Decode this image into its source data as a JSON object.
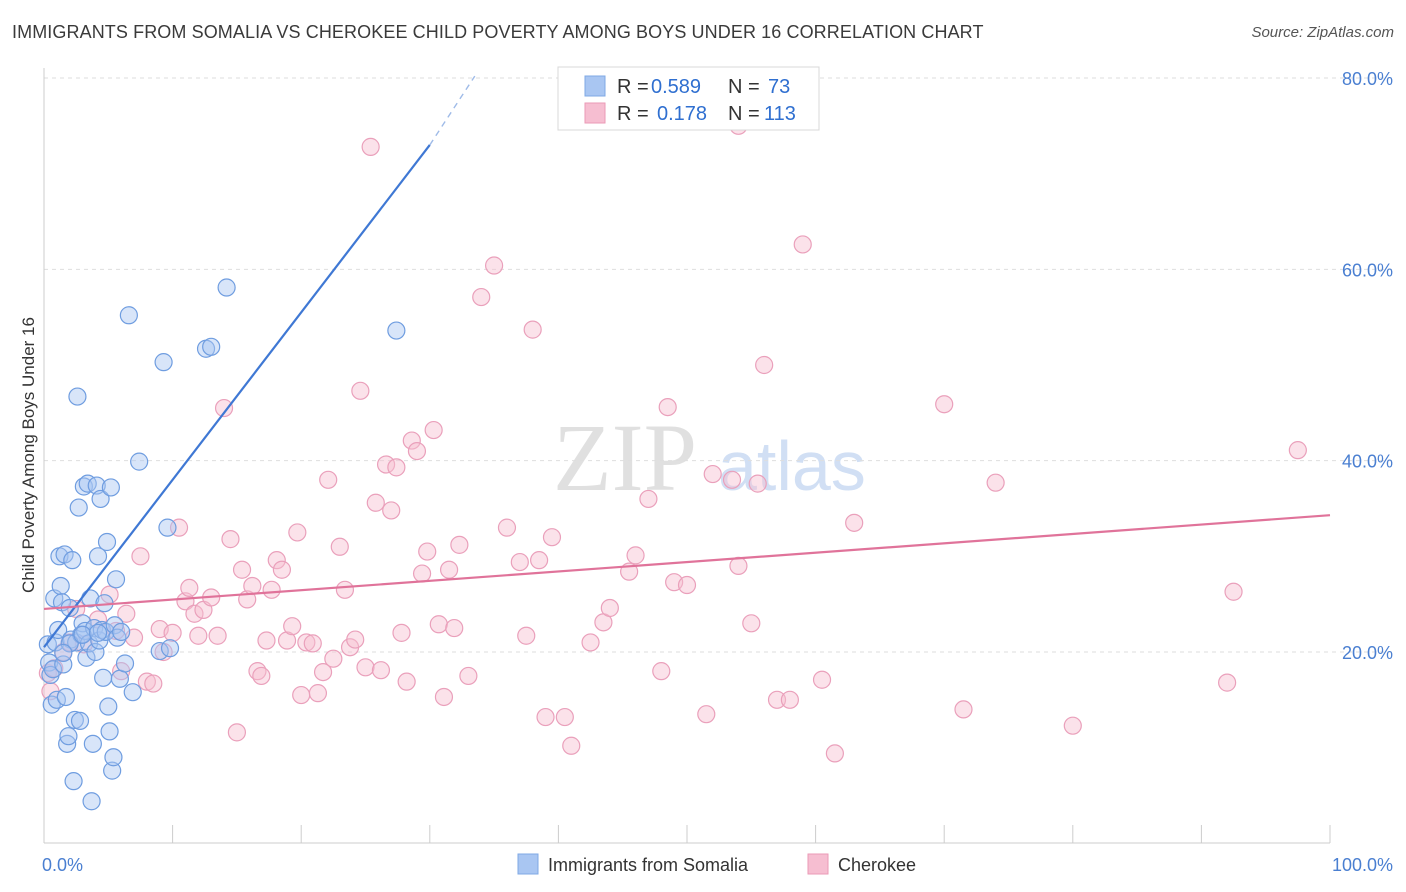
{
  "title": "IMMIGRANTS FROM SOMALIA VS CHEROKEE CHILD POVERTY AMONG BOYS UNDER 16 CORRELATION CHART",
  "source": "Source: ZipAtlas.com",
  "watermark": {
    "zip": "ZIP",
    "atlas": "atlas"
  },
  "colors": {
    "blue": "#4f86d9",
    "blue_fill": "#a9c6f2",
    "pink": "#e0739a",
    "pink_fill": "#f6bed1",
    "grid": "#dcdcdc",
    "axis_label": "#4a7fd1"
  },
  "legend": {
    "r_label": "R =",
    "n_label": "N =",
    "series": [
      {
        "name": "Immigrants from Somalia",
        "r": "0.589",
        "n": "73"
      },
      {
        "name": "Cherokee",
        "r": "0.178",
        "n": "113"
      }
    ]
  },
  "chart_data": {
    "type": "scatter",
    "title": "IMMIGRANTS FROM SOMALIA VS CHEROKEE CHILD POVERTY AMONG BOYS UNDER 16 CORRELATION CHART",
    "xlabel": "",
    "ylabel": "Child Poverty Among Boys Under 16",
    "xlim": [
      0,
      100
    ],
    "ylim": [
      0,
      84
    ],
    "x_tick_labels": [
      "0.0%",
      "100.0%"
    ],
    "y_ticks": [
      20,
      40,
      60,
      80
    ],
    "y_tick_labels": [
      "20.0%",
      "40.0%",
      "60.0%",
      "80.0%"
    ],
    "grid": true,
    "legend_position": "top-center",
    "series": [
      {
        "name": "Immigrants from Somalia",
        "color": "#4f86d9",
        "trend": {
          "x": [
            0,
            30
          ],
          "y": [
            20.5,
            73.0
          ],
          "dashed_extension_x": [
            30,
            33.5
          ],
          "dashed_extension_y": [
            73.0,
            80.2
          ]
        },
        "points": [
          [
            0.3,
            20.8
          ],
          [
            0.4,
            18.9
          ],
          [
            0.5,
            17.6
          ],
          [
            0.6,
            14.5
          ],
          [
            0.7,
            18.2
          ],
          [
            0.8,
            25.6
          ],
          [
            0.9,
            21.0
          ],
          [
            1.0,
            15.0
          ],
          [
            1.1,
            22.3
          ],
          [
            1.2,
            30.0
          ],
          [
            1.3,
            26.9
          ],
          [
            1.4,
            25.2
          ],
          [
            1.5,
            18.7
          ],
          [
            1.6,
            30.2
          ],
          [
            1.7,
            15.3
          ],
          [
            1.8,
            10.4
          ],
          [
            1.9,
            11.2
          ],
          [
            2.0,
            24.6
          ],
          [
            2.1,
            21.3
          ],
          [
            2.2,
            29.6
          ],
          [
            2.3,
            6.5
          ],
          [
            2.4,
            12.9
          ],
          [
            2.5,
            21.0
          ],
          [
            2.6,
            46.7
          ],
          [
            2.7,
            35.1
          ],
          [
            2.8,
            12.8
          ],
          [
            2.9,
            21.8
          ],
          [
            3.0,
            23.0
          ],
          [
            3.1,
            37.3
          ],
          [
            3.2,
            22.2
          ],
          [
            3.3,
            19.4
          ],
          [
            3.4,
            37.6
          ],
          [
            3.5,
            20.9
          ],
          [
            3.6,
            25.6
          ],
          [
            3.7,
            4.4
          ],
          [
            3.8,
            10.4
          ],
          [
            3.9,
            22.5
          ],
          [
            4.0,
            20.0
          ],
          [
            4.1,
            37.4
          ],
          [
            4.2,
            30.0
          ],
          [
            4.3,
            21.2
          ],
          [
            4.4,
            36.0
          ],
          [
            4.5,
            22.3
          ],
          [
            4.6,
            17.3
          ],
          [
            4.7,
            25.1
          ],
          [
            4.8,
            22.1
          ],
          [
            4.9,
            31.5
          ],
          [
            5.0,
            14.3
          ],
          [
            5.1,
            11.7
          ],
          [
            5.2,
            37.2
          ],
          [
            5.3,
            7.6
          ],
          [
            5.4,
            9.0
          ],
          [
            5.5,
            22.8
          ],
          [
            5.6,
            27.6
          ],
          [
            5.7,
            21.5
          ],
          [
            5.9,
            17.2
          ],
          [
            6.0,
            22.1
          ],
          [
            6.3,
            18.8
          ],
          [
            6.6,
            55.2
          ],
          [
            6.9,
            15.8
          ],
          [
            7.4,
            39.9
          ],
          [
            9.0,
            20.1
          ],
          [
            9.3,
            50.3
          ],
          [
            9.6,
            33.0
          ],
          [
            9.8,
            20.4
          ],
          [
            12.6,
            51.7
          ],
          [
            13.0,
            51.9
          ],
          [
            14.2,
            58.1
          ],
          [
            27.4,
            53.6
          ],
          [
            2.0,
            20.9
          ],
          [
            1.5,
            19.9
          ],
          [
            3.0,
            21.8
          ],
          [
            4.2,
            22.0
          ]
        ]
      },
      {
        "name": "Cherokee",
        "color": "#e0739a",
        "trend": {
          "x": [
            0,
            100
          ],
          "y": [
            24.5,
            34.3
          ]
        },
        "points": [
          [
            0.3,
            17.8
          ],
          [
            0.5,
            15.9
          ],
          [
            0.8,
            18.3
          ],
          [
            1.5,
            20.0
          ],
          [
            2.0,
            21.0
          ],
          [
            2.5,
            24.5
          ],
          [
            3.1,
            20.8
          ],
          [
            4.2,
            23.4
          ],
          [
            5.1,
            26.0
          ],
          [
            5.6,
            22.2
          ],
          [
            6.0,
            18.0
          ],
          [
            6.4,
            24.0
          ],
          [
            7.0,
            21.5
          ],
          [
            7.5,
            30.0
          ],
          [
            8.0,
            16.9
          ],
          [
            8.5,
            16.7
          ],
          [
            9.0,
            22.4
          ],
          [
            9.3,
            20.0
          ],
          [
            10.0,
            22.0
          ],
          [
            10.5,
            33.0
          ],
          [
            11.0,
            25.3
          ],
          [
            11.3,
            26.7
          ],
          [
            11.7,
            24.0
          ],
          [
            12.0,
            21.7
          ],
          [
            12.4,
            24.4
          ],
          [
            13.0,
            25.7
          ],
          [
            13.5,
            21.7
          ],
          [
            14.0,
            45.5
          ],
          [
            14.5,
            31.8
          ],
          [
            15.0,
            11.6
          ],
          [
            15.4,
            28.6
          ],
          [
            15.8,
            25.5
          ],
          [
            16.2,
            26.9
          ],
          [
            16.6,
            18.0
          ],
          [
            16.9,
            17.5
          ],
          [
            17.3,
            21.2
          ],
          [
            17.7,
            26.5
          ],
          [
            18.1,
            29.6
          ],
          [
            18.5,
            28.6
          ],
          [
            18.9,
            21.2
          ],
          [
            19.3,
            22.7
          ],
          [
            19.7,
            32.5
          ],
          [
            20.0,
            15.5
          ],
          [
            20.4,
            21.0
          ],
          [
            20.9,
            20.9
          ],
          [
            21.3,
            15.7
          ],
          [
            21.7,
            17.9
          ],
          [
            22.1,
            38.0
          ],
          [
            22.5,
            19.3
          ],
          [
            23.0,
            31.0
          ],
          [
            23.4,
            26.5
          ],
          [
            23.8,
            20.5
          ],
          [
            24.2,
            21.3
          ],
          [
            24.6,
            47.3
          ],
          [
            25.0,
            18.4
          ],
          [
            25.4,
            72.8
          ],
          [
            25.8,
            35.6
          ],
          [
            26.2,
            18.1
          ],
          [
            26.6,
            39.6
          ],
          [
            27.0,
            34.8
          ],
          [
            27.4,
            39.3
          ],
          [
            27.8,
            22.0
          ],
          [
            28.2,
            16.9
          ],
          [
            28.6,
            42.1
          ],
          [
            29.0,
            41.0
          ],
          [
            29.4,
            28.2
          ],
          [
            29.8,
            30.5
          ],
          [
            30.3,
            43.2
          ],
          [
            30.7,
            22.9
          ],
          [
            31.1,
            15.3
          ],
          [
            31.5,
            28.6
          ],
          [
            31.9,
            22.5
          ],
          [
            32.3,
            31.2
          ],
          [
            33.0,
            17.5
          ],
          [
            34.0,
            57.1
          ],
          [
            35.0,
            60.4
          ],
          [
            36.0,
            33.0
          ],
          [
            37.0,
            29.4
          ],
          [
            37.5,
            21.7
          ],
          [
            38.0,
            53.7
          ],
          [
            38.5,
            29.6
          ],
          [
            39.0,
            13.2
          ],
          [
            39.5,
            32.0
          ],
          [
            40.5,
            13.2
          ],
          [
            41.0,
            10.2
          ],
          [
            42.5,
            21.0
          ],
          [
            43.5,
            23.1
          ],
          [
            44.0,
            24.6
          ],
          [
            45.5,
            28.4
          ],
          [
            46.0,
            30.1
          ],
          [
            47.0,
            36.0
          ],
          [
            48.0,
            18.0
          ],
          [
            48.5,
            45.6
          ],
          [
            49.0,
            27.3
          ],
          [
            50.0,
            27.0
          ],
          [
            51.5,
            13.5
          ],
          [
            52.0,
            38.6
          ],
          [
            53.5,
            38.0
          ],
          [
            54.0,
            29.0
          ],
          [
            55.0,
            23.0
          ],
          [
            55.5,
            37.6
          ],
          [
            56.0,
            50.0
          ],
          [
            57.0,
            15.0
          ],
          [
            58.0,
            15.0
          ],
          [
            59.0,
            62.6
          ],
          [
            60.5,
            17.1
          ],
          [
            61.5,
            9.4
          ],
          [
            63.0,
            33.5
          ],
          [
            70.0,
            45.9
          ],
          [
            71.5,
            14.0
          ],
          [
            74.0,
            37.7
          ],
          [
            80.0,
            12.3
          ],
          [
            92.0,
            16.8
          ],
          [
            92.5,
            26.3
          ],
          [
            97.5,
            41.1
          ],
          [
            54.0,
            75.0
          ]
        ]
      }
    ]
  }
}
